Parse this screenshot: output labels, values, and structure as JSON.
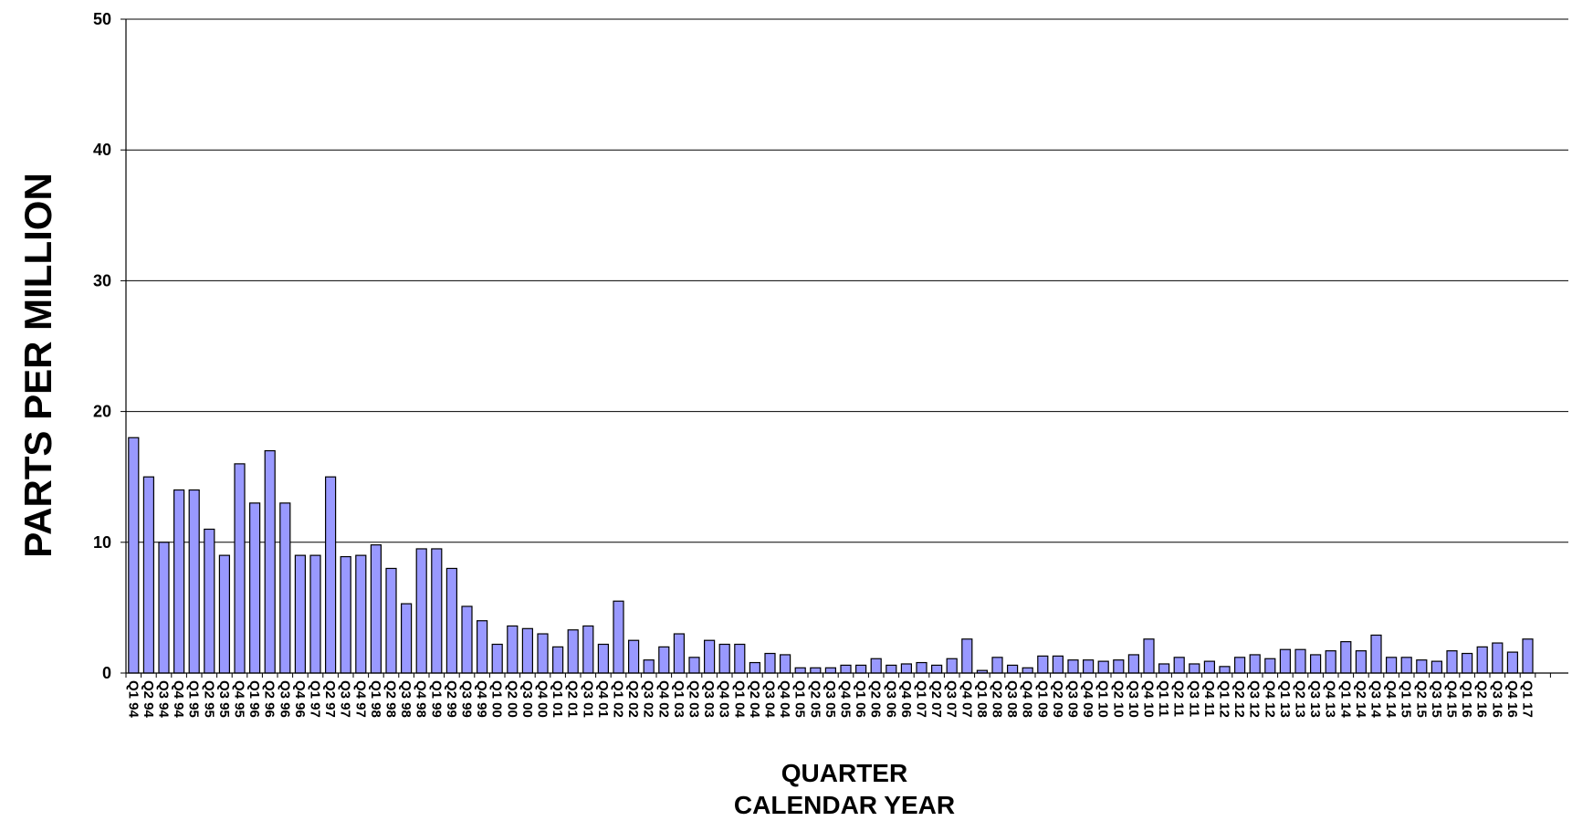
{
  "chart_data": {
    "type": "bar",
    "title": "",
    "xlabel": [
      "QUARTER",
      "CALENDAR YEAR"
    ],
    "ylabel": "PARTS PER MILLION",
    "ylim": [
      0,
      50
    ],
    "yticks": [
      0,
      10,
      20,
      30,
      40,
      50
    ],
    "grid": true,
    "bar_color": "#9999ff",
    "bar_edge_color": "#000000",
    "categories": [
      "Q1 94",
      "Q2 94",
      "Q3 94",
      "Q4 94",
      "Q1 95",
      "Q2 95",
      "Q3 95",
      "Q4 95",
      "Q1 96",
      "Q2 96",
      "Q3 96",
      "Q4 96",
      "Q1 97",
      "Q2 97",
      "Q3 97",
      "Q4 97",
      "Q1 98",
      "Q2 98",
      "Q3 98",
      "Q4 98",
      "Q1 99",
      "Q2 99",
      "Q3 99",
      "Q4 99",
      "Q1 00",
      "Q2 00",
      "Q3 00",
      "Q4 00",
      "Q1 01",
      "Q2 01",
      "Q3 01",
      "Q4 01",
      "Q1 02",
      "Q2 02",
      "Q3 02",
      "Q4 02",
      "Q1 03",
      "Q2 03",
      "Q3 03",
      "Q4 03",
      "Q1 04",
      "Q2 04",
      "Q3 04",
      "Q4 04",
      "Q1 05",
      "Q2 05",
      "Q3 05",
      "Q4 05",
      "Q1 06",
      "Q2 06",
      "Q3 06",
      "Q4 06",
      "Q1 07",
      "Q2 07",
      "Q3 07",
      "Q4 07",
      "Q1 08",
      "Q2 08",
      "Q3 08",
      "Q4 08",
      "Q1 09",
      "Q2 09",
      "Q3 09",
      "Q4 09",
      "Q1 10",
      "Q2 10",
      "Q3 10",
      "Q4 10",
      "Q1 11",
      "Q2 11",
      "Q3 11",
      "Q4 11",
      "Q1 12",
      "Q2 12",
      "Q3 12",
      "Q4 12",
      "Q1 13",
      "Q2 13",
      "Q3 13",
      "Q4 13",
      "Q1 14",
      "Q2 14",
      "Q3 14",
      "Q4 14",
      "Q1 15",
      "Q2 15",
      "Q3 15",
      "Q4 15",
      "Q1 16",
      "Q2 16",
      "Q3 16",
      "Q4 16",
      "Q1 17"
    ],
    "values": [
      18,
      15,
      10,
      14,
      14,
      11,
      9,
      16,
      13,
      17,
      13,
      9,
      9,
      15,
      8.9,
      9,
      9.8,
      8,
      5.3,
      9.5,
      9.5,
      8,
      5.1,
      4,
      2.2,
      3.6,
      3.4,
      3.0,
      2.0,
      3.3,
      3.6,
      2.2,
      5.5,
      2.5,
      1.0,
      2.0,
      3.0,
      1.2,
      2.5,
      2.2,
      2.2,
      0.8,
      1.5,
      1.4,
      0.4,
      0.4,
      0.4,
      0.6,
      0.6,
      1.1,
      0.6,
      0.7,
      0.8,
      0.6,
      1.1,
      2.6,
      0.2,
      1.2,
      0.6,
      0.4,
      1.3,
      1.3,
      1.0,
      1.0,
      0.9,
      1.0,
      1.4,
      2.6,
      0.7,
      1.2,
      0.7,
      0.9,
      0.5,
      1.2,
      1.4,
      1.1,
      1.8,
      1.8,
      1.4,
      1.7,
      2.4,
      1.7,
      2.9,
      1.2,
      1.2,
      1.0,
      0.9,
      1.7,
      1.5,
      2.0,
      2.3,
      1.6,
      2.6
    ]
  }
}
